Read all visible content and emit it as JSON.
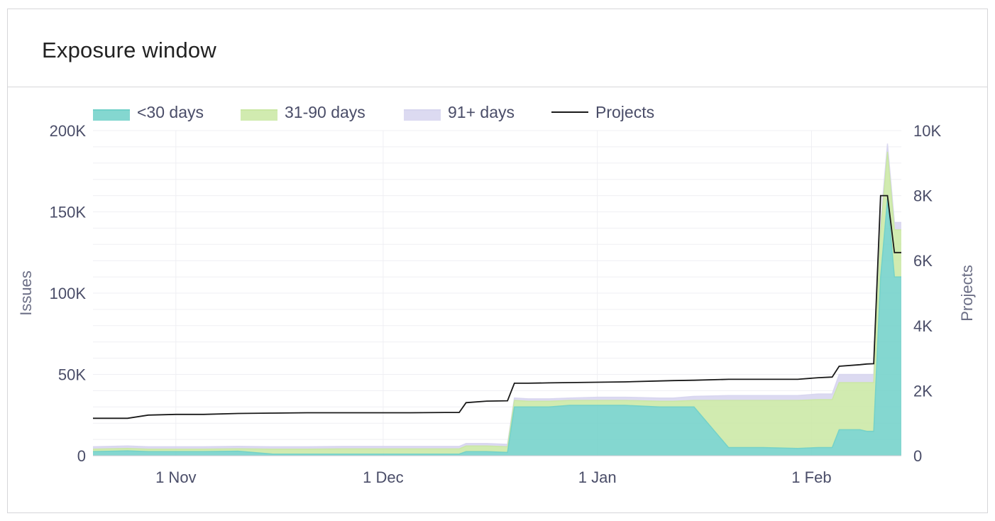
{
  "card": {
    "title": "Exposure window"
  },
  "chart_data": {
    "type": "area",
    "title": "Exposure window",
    "stacked": true,
    "x_ticks": [
      {
        "label": "1 Nov",
        "date": "2023-11-01"
      },
      {
        "label": "1 Dec",
        "date": "2023-12-01"
      },
      {
        "label": "1 Jan",
        "date": "2024-01-01"
      },
      {
        "label": "1 Feb",
        "date": "2024-02-01"
      }
    ],
    "xlim": [
      "2023-10-20",
      "2024-02-14"
    ],
    "y_left": {
      "label": "Issues",
      "ylim": [
        0,
        200000
      ],
      "tick_values": [
        0,
        50000,
        100000,
        150000,
        200000
      ],
      "tick_labels": [
        "0",
        "50K",
        "100K",
        "150K",
        "200K"
      ]
    },
    "y_right": {
      "label": "Projects",
      "ylim": [
        0,
        10000
      ],
      "tick_values": [
        0,
        2000,
        4000,
        6000,
        8000,
        10000
      ],
      "tick_labels": [
        "0",
        "2K",
        "4K",
        "6K",
        "8K",
        "10K"
      ]
    },
    "grid": true,
    "legend_position": "top-left",
    "x": [
      "2023-10-20",
      "2023-10-25",
      "2023-10-28",
      "2023-11-01",
      "2023-11-05",
      "2023-11-10",
      "2023-11-15",
      "2023-11-20",
      "2023-11-25",
      "2023-11-30",
      "2023-12-05",
      "2023-12-10",
      "2023-12-12",
      "2023-12-13",
      "2023-12-16",
      "2023-12-19",
      "2023-12-20",
      "2023-12-22",
      "2023-12-25",
      "2023-12-28",
      "2024-01-01",
      "2024-01-05",
      "2024-01-10",
      "2024-01-12",
      "2024-01-15",
      "2024-01-20",
      "2024-01-25",
      "2024-01-30",
      "2024-02-02",
      "2024-02-04",
      "2024-02-05",
      "2024-02-08",
      "2024-02-09",
      "2024-02-10",
      "2024-02-11",
      "2024-02-12",
      "2024-02-13",
      "2024-02-14"
    ],
    "series": [
      {
        "name": "<30 days",
        "axis": "left",
        "type": "area",
        "color": "#6fd0c8",
        "values": [
          2500,
          3000,
          2500,
          2500,
          2500,
          2800,
          1000,
          1000,
          1000,
          1000,
          1000,
          1000,
          1000,
          2500,
          2500,
          2000,
          30000,
          30000,
          30000,
          31000,
          31000,
          31000,
          30000,
          30000,
          30000,
          5000,
          5000,
          4500,
          5000,
          5000,
          16000,
          16000,
          15000,
          15000,
          110000,
          158000,
          110000,
          110000
        ]
      },
      {
        "name": "31-90 days",
        "axis": "left",
        "type": "area",
        "color": "#c9e7a2",
        "values": [
          1500,
          1500,
          1500,
          1500,
          1500,
          1500,
          3000,
          3000,
          3200,
          3200,
          3200,
          3200,
          3200,
          3500,
          3500,
          3500,
          4000,
          3500,
          3500,
          3000,
          3000,
          3000,
          3500,
          3500,
          4000,
          29000,
          29000,
          29500,
          29500,
          29500,
          29000,
          29000,
          30000,
          30000,
          28000,
          29000,
          29000,
          29000
        ]
      },
      {
        "name": "91+ days",
        "axis": "left",
        "type": "area",
        "color": "#d6d4ee",
        "values": [
          1500,
          1500,
          1500,
          1500,
          1500,
          1500,
          1500,
          1500,
          1500,
          1500,
          1500,
          1500,
          1500,
          1500,
          1500,
          1500,
          1500,
          1500,
          1500,
          1500,
          2000,
          2000,
          2000,
          2000,
          2500,
          3000,
          3000,
          3000,
          3500,
          3500,
          5000,
          5000,
          5000,
          5000,
          5000,
          5000,
          4500,
          4500
        ]
      },
      {
        "name": "Projects",
        "axis": "right",
        "type": "line",
        "color": "#1a1a1a",
        "values": [
          1150,
          1150,
          1250,
          1270,
          1270,
          1300,
          1310,
          1320,
          1320,
          1320,
          1320,
          1330,
          1330,
          1630,
          1680,
          1690,
          2230,
          2230,
          2240,
          2250,
          2260,
          2270,
          2300,
          2310,
          2320,
          2350,
          2350,
          2350,
          2400,
          2420,
          2750,
          2800,
          2820,
          2830,
          8000,
          8000,
          6250,
          6250
        ]
      }
    ]
  }
}
